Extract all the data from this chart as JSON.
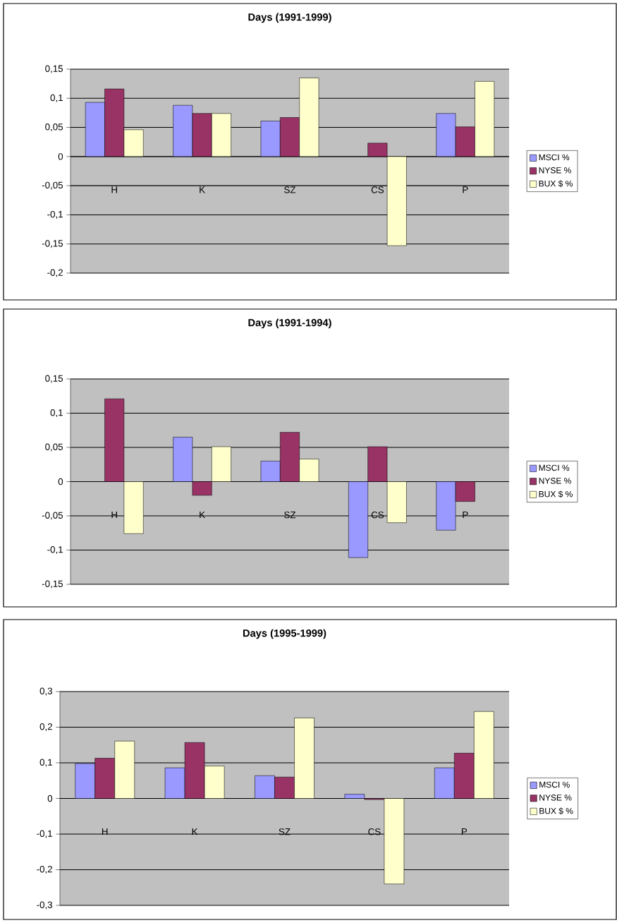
{
  "chart_data": [
    {
      "type": "bar",
      "title": "Days (1991-1999)",
      "categories": [
        "H",
        "K",
        "SZ",
        "CS",
        "P"
      ],
      "series": [
        {
          "name": "MSCI %",
          "color": "#9999ff",
          "values": [
            0.093,
            0.088,
            0.061,
            null,
            0.074
          ]
        },
        {
          "name": "NYSE %",
          "color": "#993366",
          "values": [
            0.116,
            0.074,
            0.067,
            0.023,
            0.051
          ]
        },
        {
          "name": "BUX $ %",
          "color": "#ffffcc",
          "values": [
            0.046,
            0.074,
            0.135,
            -0.153,
            0.129
          ]
        }
      ],
      "ylim": [
        -0.2,
        0.15
      ],
      "yticks": [
        {
          "value": -0.2,
          "label": "-0,2"
        },
        {
          "value": -0.15,
          "label": "-0,15"
        },
        {
          "value": -0.1,
          "label": "-0,1"
        },
        {
          "value": -0.05,
          "label": "-0,05"
        },
        0,
        {
          "value": 0.05,
          "label": "0,05"
        },
        {
          "value": 0.1,
          "label": "0,1"
        },
        {
          "value": 0.15,
          "label": "0,15"
        }
      ],
      "grid": "y",
      "legend": "right"
    },
    {
      "type": "bar",
      "title": "Days (1991-1994)",
      "categories": [
        "H",
        "K",
        "SZ",
        "CS",
        "P"
      ],
      "series": [
        {
          "name": "MSCI %",
          "color": "#9999ff",
          "values": [
            null,
            0.065,
            0.03,
            -0.111,
            -0.071
          ]
        },
        {
          "name": "NYSE %",
          "color": "#993366",
          "values": [
            0.121,
            -0.02,
            0.072,
            0.051,
            -0.029
          ]
        },
        {
          "name": "BUX $ %",
          "color": "#ffffcc",
          "values": [
            -0.076,
            0.051,
            0.033,
            -0.06,
            null
          ]
        }
      ],
      "ylim": [
        -0.15,
        0.15
      ],
      "yticks": [
        {
          "value": -0.15,
          "label": "-0,15"
        },
        {
          "value": -0.1,
          "label": "-0,1"
        },
        {
          "value": -0.05,
          "label": "-0,05"
        },
        0,
        {
          "value": 0.05,
          "label": "0,05"
        },
        {
          "value": 0.1,
          "label": "0,1"
        },
        {
          "value": 0.15,
          "label": "0,15"
        }
      ],
      "grid": "y",
      "legend": "right"
    },
    {
      "type": "bar",
      "title": "Days (1995-1999)",
      "categories": [
        "H",
        "K",
        "SZ",
        "CS",
        "P"
      ],
      "series": [
        {
          "name": "MSCI %",
          "color": "#9999ff",
          "values": [
            0.098,
            0.086,
            0.064,
            0.012,
            0.086
          ]
        },
        {
          "name": "NYSE %",
          "color": "#993366",
          "values": [
            0.113,
            0.157,
            0.06,
            -0.003,
            0.127
          ]
        },
        {
          "name": "BUX $ %",
          "color": "#ffffcc",
          "values": [
            0.161,
            0.091,
            0.226,
            -0.24,
            0.244
          ]
        }
      ],
      "ylim": [
        -0.3,
        0.3
      ],
      "yticks": [
        {
          "value": -0.3,
          "label": "-0,3"
        },
        {
          "value": -0.2,
          "label": "-0,2"
        },
        {
          "value": -0.1,
          "label": "-0,1"
        },
        0,
        {
          "value": 0.1,
          "label": "0,1"
        },
        {
          "value": 0.2,
          "label": "0,2"
        },
        {
          "value": 0.3,
          "label": "0,3"
        }
      ],
      "grid": "y",
      "legend": "right"
    }
  ]
}
